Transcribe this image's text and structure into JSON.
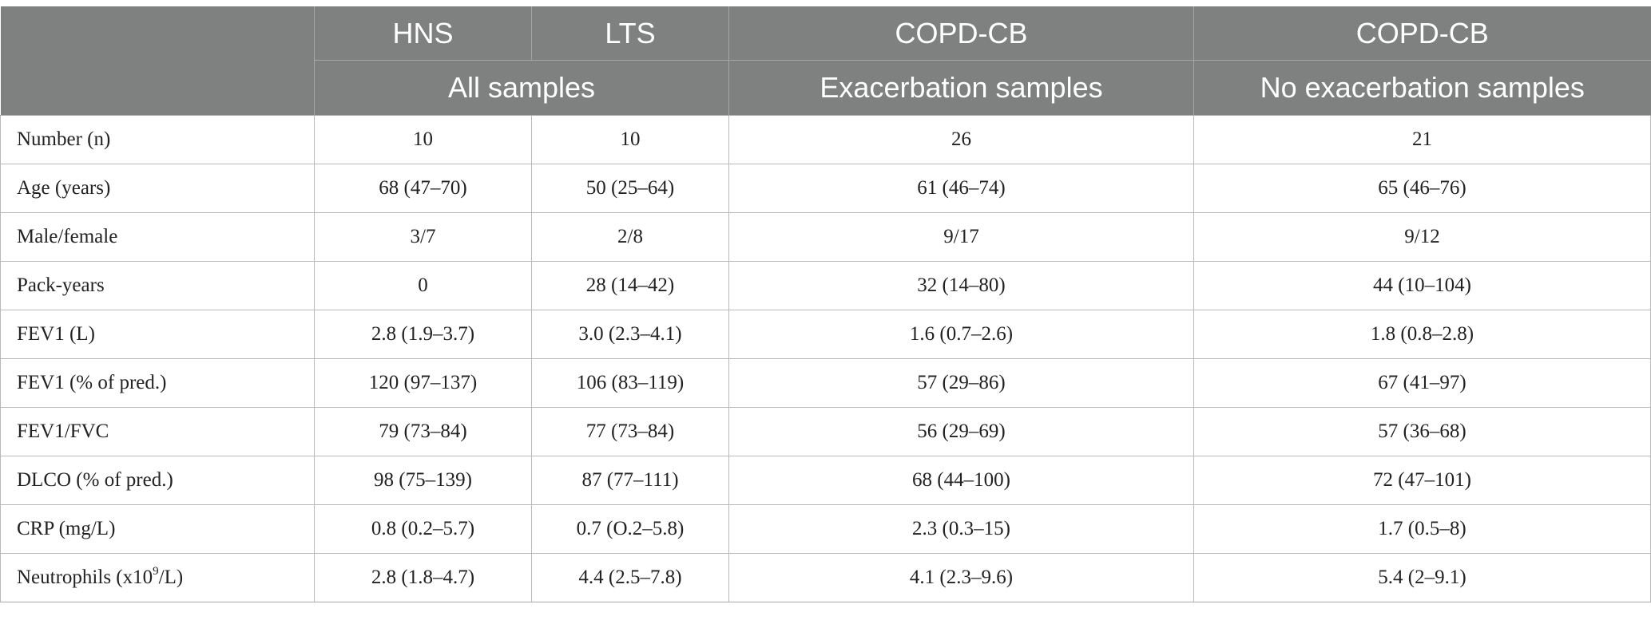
{
  "header": {
    "row1": [
      "HNS",
      "LTS",
      "COPD-CB",
      "COPD-CB"
    ],
    "row2": [
      "All samples",
      "Exacerbation samples",
      "No exacerbation samples"
    ]
  },
  "rows": [
    {
      "label": "Number (n)",
      "values": [
        "10",
        "10",
        "26",
        "21"
      ]
    },
    {
      "label": "Age (years)",
      "values": [
        "68 (47–70)",
        "50 (25–64)",
        "61 (46–74)",
        "65 (46–76)"
      ]
    },
    {
      "label": "Male/female",
      "values": [
        "3/7",
        "2/8",
        "9/17",
        "9/12"
      ]
    },
    {
      "label": "Pack-years",
      "values": [
        "0",
        "28 (14–42)",
        "32 (14–80)",
        "44 (10–104)"
      ]
    },
    {
      "label": "FEV1 (L)",
      "values": [
        "2.8 (1.9–3.7)",
        "3.0 (2.3–4.1)",
        "1.6 (0.7–2.6)",
        "1.8 (0.8–2.8)"
      ]
    },
    {
      "label": "FEV1 (% of pred.)",
      "values": [
        "120 (97–137)",
        "106 (83–119)",
        "57 (29–86)",
        "67 (41–97)"
      ]
    },
    {
      "label": "FEV1/FVC",
      "values": [
        "79 (73–84)",
        "77 (73–84)",
        "56 (29–69)",
        "57 (36–68)"
      ]
    },
    {
      "label": "DLCO (% of pred.)",
      "values": [
        "98 (75–139)",
        "87 (77–111)",
        "68 (44–100)",
        "72 (47–101)"
      ]
    },
    {
      "label": "CRP (mg/L)",
      "values": [
        "0.8 (0.2–5.7)",
        "0.7 (O.2–5.8)",
        "2.3 (0.3–15)",
        "1.7 (0.5–8)"
      ]
    },
    {
      "label_prefix": "Neutrophils (x10",
      "label_sup": "9",
      "label_suffix": "/L)",
      "values": [
        "2.8 (1.8–4.7)",
        "4.4 (2.5–7.8)",
        "4.1 (2.3–9.6)",
        "5.4 (2–9.1)"
      ]
    }
  ]
}
